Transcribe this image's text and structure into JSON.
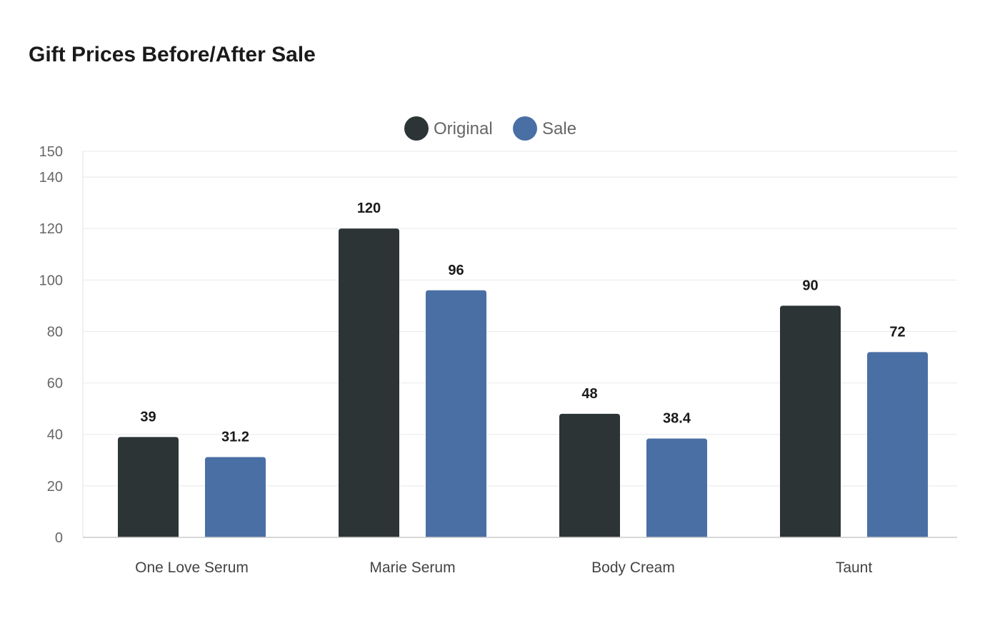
{
  "chart_data": {
    "type": "bar",
    "title": "Gift Prices Before/After Sale",
    "categories": [
      "One Love Serum",
      "Marie Serum",
      "Body Cream",
      "Taunt"
    ],
    "series": [
      {
        "name": "Original",
        "values": [
          39,
          120,
          48,
          90
        ],
        "color": "#2d3436"
      },
      {
        "name": "Sale",
        "values": [
          31.2,
          96,
          38.4,
          72
        ],
        "color": "#4a6fa5"
      }
    ],
    "yticks": [
      0,
      20,
      40,
      60,
      80,
      100,
      120,
      140,
      150
    ],
    "ylim": [
      0,
      150
    ],
    "xlabel": "",
    "ylabel": "",
    "grid": true,
    "legend_position": "top-center"
  }
}
